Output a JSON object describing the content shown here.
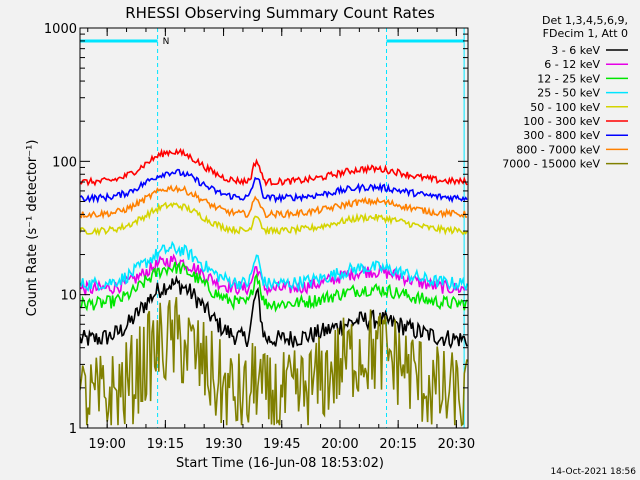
{
  "chart_data": {
    "type": "line",
    "title": "RHESSI Observing Summary Count Rates",
    "xlabel": "Start Time (16-Jun-08 18:53:02)",
    "ylabel": "Count Rate (s⁻¹ detector⁻¹)",
    "x_range_minutes_after_1853": [
      0,
      100
    ],
    "ylim": [
      1,
      1000
    ],
    "yscale": "log",
    "x_ticks": [
      "19:00",
      "19:15",
      "19:30",
      "19:45",
      "20:00",
      "20:15",
      "20:30"
    ],
    "y_ticks": [
      "1",
      "10",
      "100",
      "1000"
    ],
    "footer_date": "14-Oct-2021 18:56",
    "legend_header": [
      "Det 1,3,4,5,6,9,",
      "FDecim 1, Att 0"
    ],
    "night_marker": "N",
    "night_intervals_hhmm": [
      [
        "18:53",
        "19:13"
      ],
      [
        "20:12",
        "20:32"
      ]
    ],
    "colors": {
      "background": "#f2f2f2",
      "night": "#00e5ff"
    },
    "series": [
      {
        "name": "3 - 6 keV",
        "color": "#000000",
        "base": 4.6,
        "hump": 12,
        "flare": 10,
        "late": 6.5,
        "noise": 0.07
      },
      {
        "name": "6 - 12 keV",
        "color": "#e600e6",
        "base": 11,
        "hump": 18,
        "flare": 16,
        "late": 15,
        "noise": 0.05
      },
      {
        "name": "12 - 25 keV",
        "color": "#00e600",
        "base": 8.5,
        "hump": 16,
        "flare": 14,
        "late": 11,
        "noise": 0.05
      },
      {
        "name": "25 - 50 keV",
        "color": "#00e5ff",
        "base": 12,
        "hump": 22,
        "flare": 19,
        "late": 16,
        "noise": 0.05
      },
      {
        "name": "50 - 100 keV",
        "color": "#d4d400",
        "base": 30,
        "hump": 47,
        "flare": 40,
        "late": 38,
        "noise": 0.025
      },
      {
        "name": "100 - 300 keV",
        "color": "#ff0000",
        "base": 70,
        "hump": 118,
        "flare": 100,
        "late": 88,
        "noise": 0.025
      },
      {
        "name": "300 - 800 keV",
        "color": "#0000ff",
        "base": 53,
        "hump": 83,
        "flare": 76,
        "late": 64,
        "noise": 0.025
      },
      {
        "name": "800 - 7000 keV",
        "color": "#ff8000",
        "base": 40,
        "hump": 63,
        "flare": 54,
        "late": 50,
        "noise": 0.025
      },
      {
        "name": "7000 - 15000 keV",
        "color": "#808000",
        "base": 1.6,
        "hump": 4.5,
        "flare": 2.5,
        "late": 3.8,
        "noise": 0.35
      }
    ]
  }
}
